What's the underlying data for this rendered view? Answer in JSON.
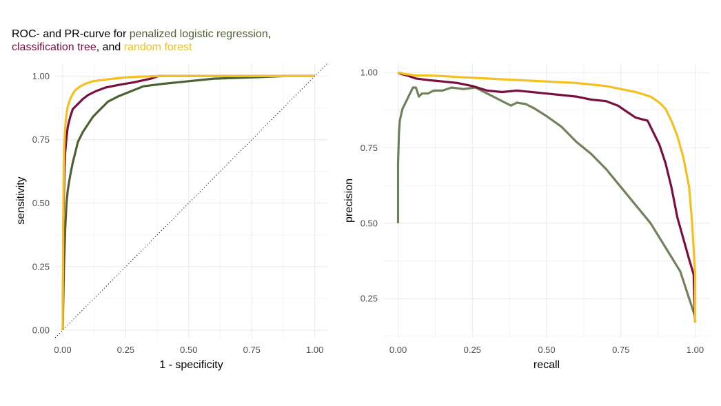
{
  "title": {
    "segment1": "ROC- and PR-curve for ",
    "segment2": "penalized logistic regression",
    "segment3": ",",
    "segment4": "classification tree",
    "segment5": ", and ",
    "segment6": "random forest"
  },
  "colors": {
    "penalized_logistic_regression": "#4e6133",
    "classification_tree": "#7a0f3f",
    "random_forest": "#f5c01d",
    "grid": "#ebebeb",
    "diagonal": "#000000"
  },
  "chart_data": [
    {
      "type": "line",
      "name": "roc",
      "xlabel": "1 - specificity",
      "ylabel": "sensitivity",
      "xlim": [
        -0.03,
        1.05
      ],
      "ylim": [
        -0.03,
        1.05
      ],
      "grid": true,
      "x_ticks": [
        "0.00",
        "0.25",
        "0.50",
        "0.75",
        "1.00"
      ],
      "y_ticks": [
        "0.00",
        "0.25",
        "0.50",
        "0.75",
        "1.00"
      ],
      "reference_line": {
        "x": [
          0,
          1
        ],
        "y": [
          0,
          1
        ],
        "style": "dotted"
      },
      "series": [
        {
          "key": "penalized_logistic_regression",
          "x": [
            0.0,
            0.005,
            0.01,
            0.015,
            0.02,
            0.03,
            0.04,
            0.05,
            0.06,
            0.08,
            0.1,
            0.12,
            0.15,
            0.18,
            0.22,
            0.27,
            0.32,
            0.4,
            0.5,
            0.6,
            0.75,
            0.88,
            1.0
          ],
          "y": [
            0.0,
            0.25,
            0.4,
            0.5,
            0.55,
            0.61,
            0.66,
            0.7,
            0.74,
            0.78,
            0.81,
            0.84,
            0.87,
            0.9,
            0.92,
            0.94,
            0.96,
            0.97,
            0.98,
            0.99,
            0.995,
            1.0,
            1.0
          ]
        },
        {
          "key": "classification_tree",
          "x": [
            0.0,
            0.003,
            0.006,
            0.01,
            0.015,
            0.02,
            0.03,
            0.04,
            0.06,
            0.08,
            0.1,
            0.13,
            0.17,
            0.22,
            0.28,
            0.35,
            0.38,
            0.5,
            0.7,
            0.88,
            1.0
          ],
          "y": [
            0.0,
            0.45,
            0.6,
            0.7,
            0.76,
            0.8,
            0.84,
            0.87,
            0.89,
            0.91,
            0.925,
            0.94,
            0.955,
            0.965,
            0.975,
            0.99,
            1.0,
            1.0,
            1.0,
            1.0,
            1.0
          ]
        },
        {
          "key": "random_forest",
          "x": [
            0.0,
            0.002,
            0.004,
            0.006,
            0.01,
            0.015,
            0.02,
            0.03,
            0.04,
            0.05,
            0.07,
            0.09,
            0.12,
            0.16,
            0.2,
            0.25,
            0.3,
            0.4,
            0.6,
            0.8,
            1.0
          ],
          "y": [
            0.0,
            0.4,
            0.6,
            0.72,
            0.8,
            0.85,
            0.88,
            0.91,
            0.93,
            0.945,
            0.96,
            0.97,
            0.98,
            0.985,
            0.99,
            0.995,
            0.998,
            1.0,
            1.0,
            1.0,
            1.0
          ]
        }
      ]
    },
    {
      "type": "line",
      "name": "pr",
      "xlabel": "recall",
      "ylabel": "precision",
      "xlim": [
        -0.05,
        1.05
      ],
      "ylim": [
        0.12,
        1.03
      ],
      "grid": true,
      "x_ticks": [
        "0.00",
        "0.25",
        "0.50",
        "0.75",
        "1.00"
      ],
      "y_ticks": [
        "0.25",
        "0.50",
        "0.75",
        "1.00"
      ],
      "series": [
        {
          "key": "penalized_logistic_regression",
          "x": [
            0.0,
            0.0,
            0.003,
            0.006,
            0.01,
            0.015,
            0.02,
            0.03,
            0.04,
            0.05,
            0.06,
            0.07,
            0.08,
            0.1,
            0.12,
            0.15,
            0.18,
            0.22,
            0.26,
            0.3,
            0.34,
            0.38,
            0.4,
            0.43,
            0.46,
            0.5,
            0.55,
            0.6,
            0.65,
            0.7,
            0.75,
            0.8,
            0.85,
            0.9,
            0.95,
            0.98,
            1.0
          ],
          "y": [
            0.5,
            0.7,
            0.8,
            0.84,
            0.86,
            0.88,
            0.89,
            0.91,
            0.93,
            0.95,
            0.95,
            0.92,
            0.93,
            0.93,
            0.94,
            0.94,
            0.95,
            0.945,
            0.95,
            0.93,
            0.91,
            0.89,
            0.9,
            0.895,
            0.88,
            0.855,
            0.82,
            0.77,
            0.73,
            0.68,
            0.62,
            0.56,
            0.5,
            0.42,
            0.34,
            0.25,
            0.19
          ]
        },
        {
          "key": "classification_tree",
          "x": [
            0.0,
            0.01,
            0.03,
            0.06,
            0.1,
            0.15,
            0.2,
            0.25,
            0.3,
            0.35,
            0.4,
            0.45,
            0.5,
            0.55,
            0.6,
            0.65,
            0.7,
            0.74,
            0.77,
            0.8,
            0.84,
            0.86,
            0.88,
            0.9,
            0.92,
            0.94,
            0.96,
            0.98,
            0.995,
            1.0
          ],
          "y": [
            1.0,
            0.995,
            0.99,
            0.98,
            0.975,
            0.97,
            0.965,
            0.955,
            0.94,
            0.935,
            0.94,
            0.935,
            0.93,
            0.925,
            0.92,
            0.91,
            0.905,
            0.89,
            0.87,
            0.85,
            0.84,
            0.8,
            0.76,
            0.7,
            0.62,
            0.52,
            0.45,
            0.38,
            0.33,
            0.17
          ]
        },
        {
          "key": "random_forest",
          "x": [
            0.0,
            0.01,
            0.02,
            0.04,
            0.06,
            0.1,
            0.15,
            0.2,
            0.3,
            0.4,
            0.5,
            0.6,
            0.7,
            0.75,
            0.8,
            0.85,
            0.88,
            0.9,
            0.92,
            0.94,
            0.96,
            0.98,
            0.99,
            1.0,
            1.0
          ],
          "y": [
            1.0,
            0.998,
            0.995,
            0.993,
            0.99,
            0.99,
            0.988,
            0.985,
            0.98,
            0.975,
            0.97,
            0.965,
            0.955,
            0.945,
            0.935,
            0.92,
            0.9,
            0.88,
            0.84,
            0.79,
            0.72,
            0.62,
            0.5,
            0.33,
            0.17
          ]
        }
      ]
    }
  ]
}
